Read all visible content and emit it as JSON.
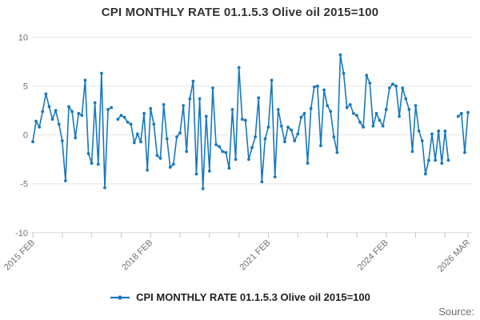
{
  "chart_data": {
    "type": "line",
    "title": "CPI MONTHLY RATE 01.1.5.3 Olive oil 2015=100",
    "legend": "CPI MONTHLY RATE 01.1.5.3 Olive oil 2015=100",
    "legend_position": "bottom",
    "grid": true,
    "ylim": [
      -10,
      10
    ],
    "y_ticks": [
      10,
      5,
      0,
      -5,
      -10
    ],
    "x_tick_labels": [
      {
        "label": "2015 FEB",
        "month_index": 0
      },
      {
        "label": "2018 FEB",
        "month_index": 36
      },
      {
        "label": "2021 FEB",
        "month_index": 72
      },
      {
        "label": "2024 FEB",
        "month_index": 108
      },
      {
        "label": "2026 MAR",
        "month_index": 133
      }
    ],
    "x_minor_tick_every_months": 9,
    "series": [
      {
        "name": "CPI MONTHLY RATE 01.1.5.3 Olive oil 2015=100",
        "frequency": "monthly",
        "start_month": "2015-02",
        "end_month": "2026-03",
        "values": [
          -0.7,
          1.4,
          0.8,
          2.4,
          4.2,
          2.9,
          1.6,
          2.5,
          1.1,
          -0.6,
          -4.7,
          2.9,
          2.4,
          -0.3,
          2.2,
          2.0,
          5.6,
          -1.9,
          -2.9,
          3.3,
          -3.0,
          6.3,
          -5.4,
          2.6,
          2.8,
          null,
          1.6,
          2.0,
          1.8,
          1.3,
          1.1,
          -0.8,
          0.1,
          -0.7,
          2.2,
          -3.6,
          2.7,
          1.1,
          -2.1,
          -2.4,
          3.1,
          -0.4,
          -3.3,
          -3.0,
          -0.2,
          0.2,
          3.0,
          -1.7,
          3.7,
          5.5,
          -4.0,
          3.7,
          -5.5,
          1.9,
          -3.7,
          4.8,
          -1.0,
          -1.2,
          -1.7,
          -1.8,
          -3.4,
          2.6,
          -2.5,
          6.9,
          1.6,
          1.5,
          -2.5,
          -1.3,
          -0.2,
          3.8,
          -4.8,
          -0.4,
          0.8,
          5.6,
          -4.3,
          2.6,
          0.9,
          -0.7,
          0.8,
          0.5,
          -0.6,
          0.1,
          1.8,
          2.2,
          -2.9,
          2.7,
          4.9,
          5.0,
          -1.1,
          4.6,
          3.0,
          2.4,
          -0.2,
          -1.8,
          8.2,
          6.3,
          2.8,
          3.1,
          2.2,
          2.0,
          1.3,
          0.8,
          6.1,
          5.3,
          0.9,
          2.2,
          1.5,
          0.9,
          2.6,
          4.8,
          5.2,
          5.0,
          1.9,
          4.8,
          3.7,
          2.6,
          -1.7,
          3.0,
          0.4,
          -0.6,
          -4.0,
          -2.6,
          0.1,
          -2.6,
          0.4,
          -2.9,
          0.4,
          -2.6,
          null,
          null,
          1.9,
          2.2,
          -1.8,
          2.3
        ]
      }
    ],
    "colors": {
      "series": "#1878be",
      "grid": "#e6e6e6",
      "axis_line": "#d6d9dc",
      "tick": "#b9c3cf",
      "axis_text": "#707071",
      "title_text": "#333333",
      "legend_text": "#1f1f1f",
      "source_text": "#6e6e6e"
    }
  },
  "footer": {
    "source_label": "Source:"
  }
}
